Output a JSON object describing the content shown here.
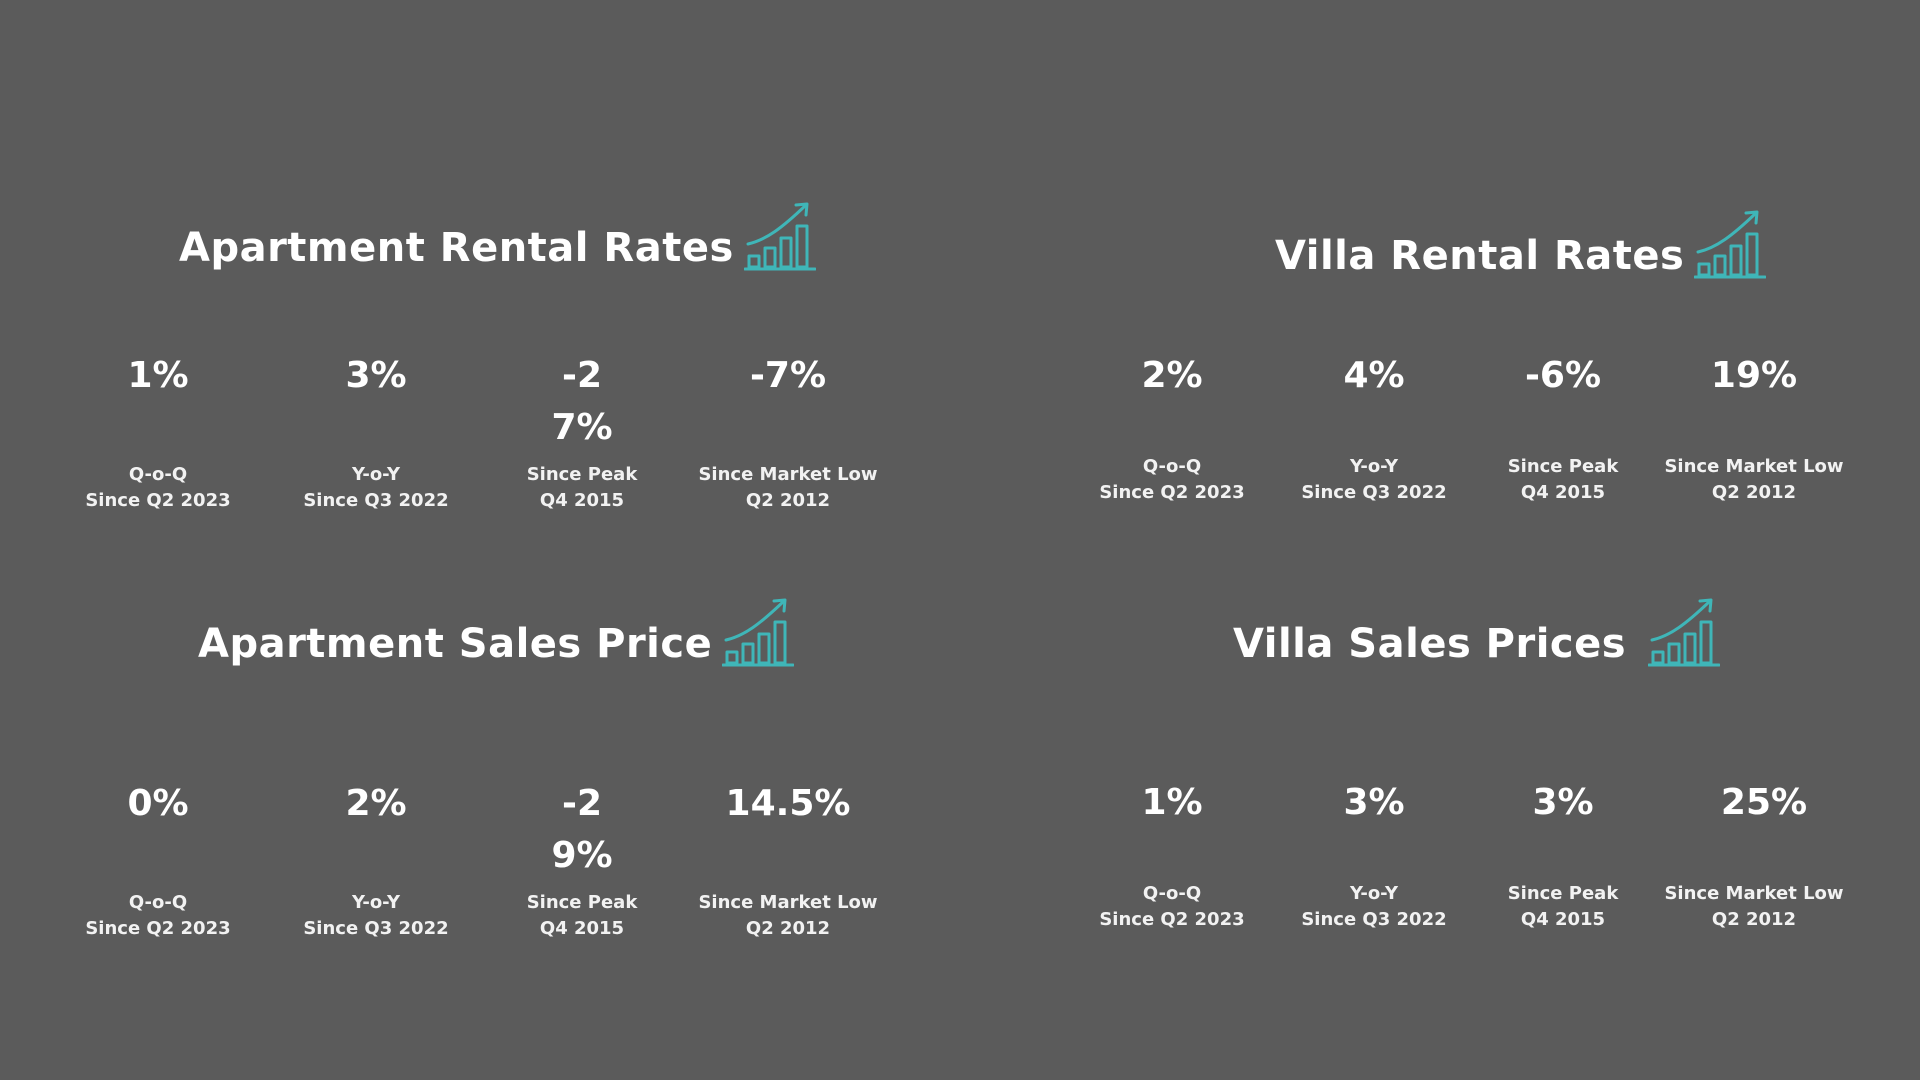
{
  "panels": [
    {
      "title": "Apartment Rental Rates",
      "icon": "growth-chart-icon",
      "stats": [
        {
          "value": "1%",
          "period": "Q-o-Q",
          "since": "Since Q2 2023"
        },
        {
          "value": "3%",
          "period": "Y-o-Y",
          "since": "Since Q3 2022"
        },
        {
          "value": "-27%",
          "period": "Since Peak",
          "since": "Q4 2015"
        },
        {
          "value": "-7%",
          "period": "Since Market Low",
          "since": "Q2 2012"
        }
      ]
    },
    {
      "title": "Villa Rental Rates",
      "icon": "growth-chart-icon",
      "stats": [
        {
          "value": "2%",
          "period": "Q-o-Q",
          "since": "Since Q2 2023"
        },
        {
          "value": "4%",
          "period": "Y-o-Y",
          "since": "Since Q3 2022"
        },
        {
          "value": "-6%",
          "period": "Since Peak",
          "since": "Q4 2015"
        },
        {
          "value": "19%",
          "period": "Since Market Low",
          "since": "Q2 2012"
        }
      ]
    },
    {
      "title": "Apartment Sales Price",
      "icon": "growth-chart-icon",
      "stats": [
        {
          "value": "0%",
          "period": "Q-o-Q",
          "since": "Since Q2 2023"
        },
        {
          "value": "2%",
          "period": "Y-o-Y",
          "since": "Since Q3 2022"
        },
        {
          "value": "-29%",
          "period": "Since Peak",
          "since": "Q4 2015"
        },
        {
          "value": "14.5%",
          "period": "Since Market Low",
          "since": "Q2 2012"
        }
      ]
    },
    {
      "title": "Villa Sales Prices",
      "icon": "growth-chart-icon",
      "stats": [
        {
          "value": "1%",
          "period": "Q-o-Q",
          "since": "Since Q2 2023"
        },
        {
          "value": "3%",
          "period": "Y-o-Y",
          "since": "Since Q3 2022"
        },
        {
          "value": "3%",
          "period": "Since Peak",
          "since": "Q4 2015"
        },
        {
          "value": "25%",
          "period": "Since Market Low",
          "since": "Q2 2012"
        }
      ]
    }
  ],
  "colors": {
    "background": "#5b5b5b",
    "text": "#ffffff",
    "icon_accent": "#3fb6b8"
  }
}
